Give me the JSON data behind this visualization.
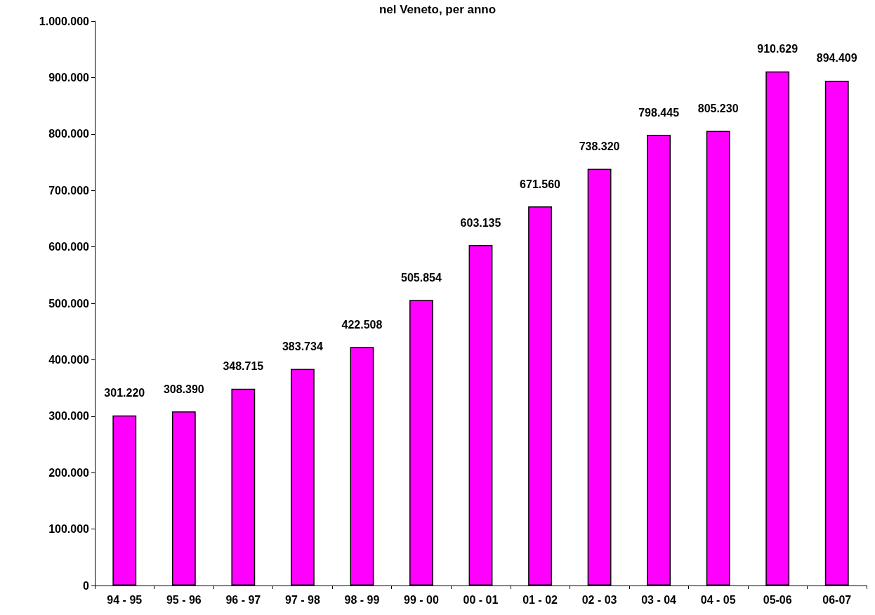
{
  "chart_data": {
    "type": "bar",
    "title": "nel Veneto, per anno",
    "categories": [
      "94 - 95",
      "95 - 96",
      "96 - 97",
      "97 - 98",
      "98 - 99",
      "99 - 00",
      "00 - 01",
      "01 - 02",
      "02 - 03",
      "03 - 04",
      "04 - 05",
      "05-06",
      "06-07"
    ],
    "values": [
      301220,
      308390,
      348715,
      383734,
      422508,
      505854,
      603135,
      671560,
      738320,
      798445,
      805230,
      910629,
      894409
    ],
    "value_labels": [
      "301.220",
      "308.390",
      "348.715",
      "383.734",
      "422.508",
      "505.854",
      "603.135",
      "671.560",
      "738.320",
      "798.445",
      "805.230",
      "910.629",
      "894.409"
    ],
    "color": "#ff00ff",
    "ylim": [
      0,
      1000000
    ],
    "yticks": [
      {
        "value": 0,
        "label": "0"
      },
      {
        "value": 100000,
        "label": "100.000"
      },
      {
        "value": 200000,
        "label": "200.000"
      },
      {
        "value": 300000,
        "label": "300.000"
      },
      {
        "value": 400000,
        "label": "400.000"
      },
      {
        "value": 500000,
        "label": "500.000"
      },
      {
        "value": 600000,
        "label": "600.000"
      },
      {
        "value": 700000,
        "label": "700.000"
      },
      {
        "value": 800000,
        "label": "800.000"
      },
      {
        "value": 900000,
        "label": "900.000"
      },
      {
        "value": 1000000,
        "label": "1.000.000"
      }
    ],
    "grid": false
  }
}
